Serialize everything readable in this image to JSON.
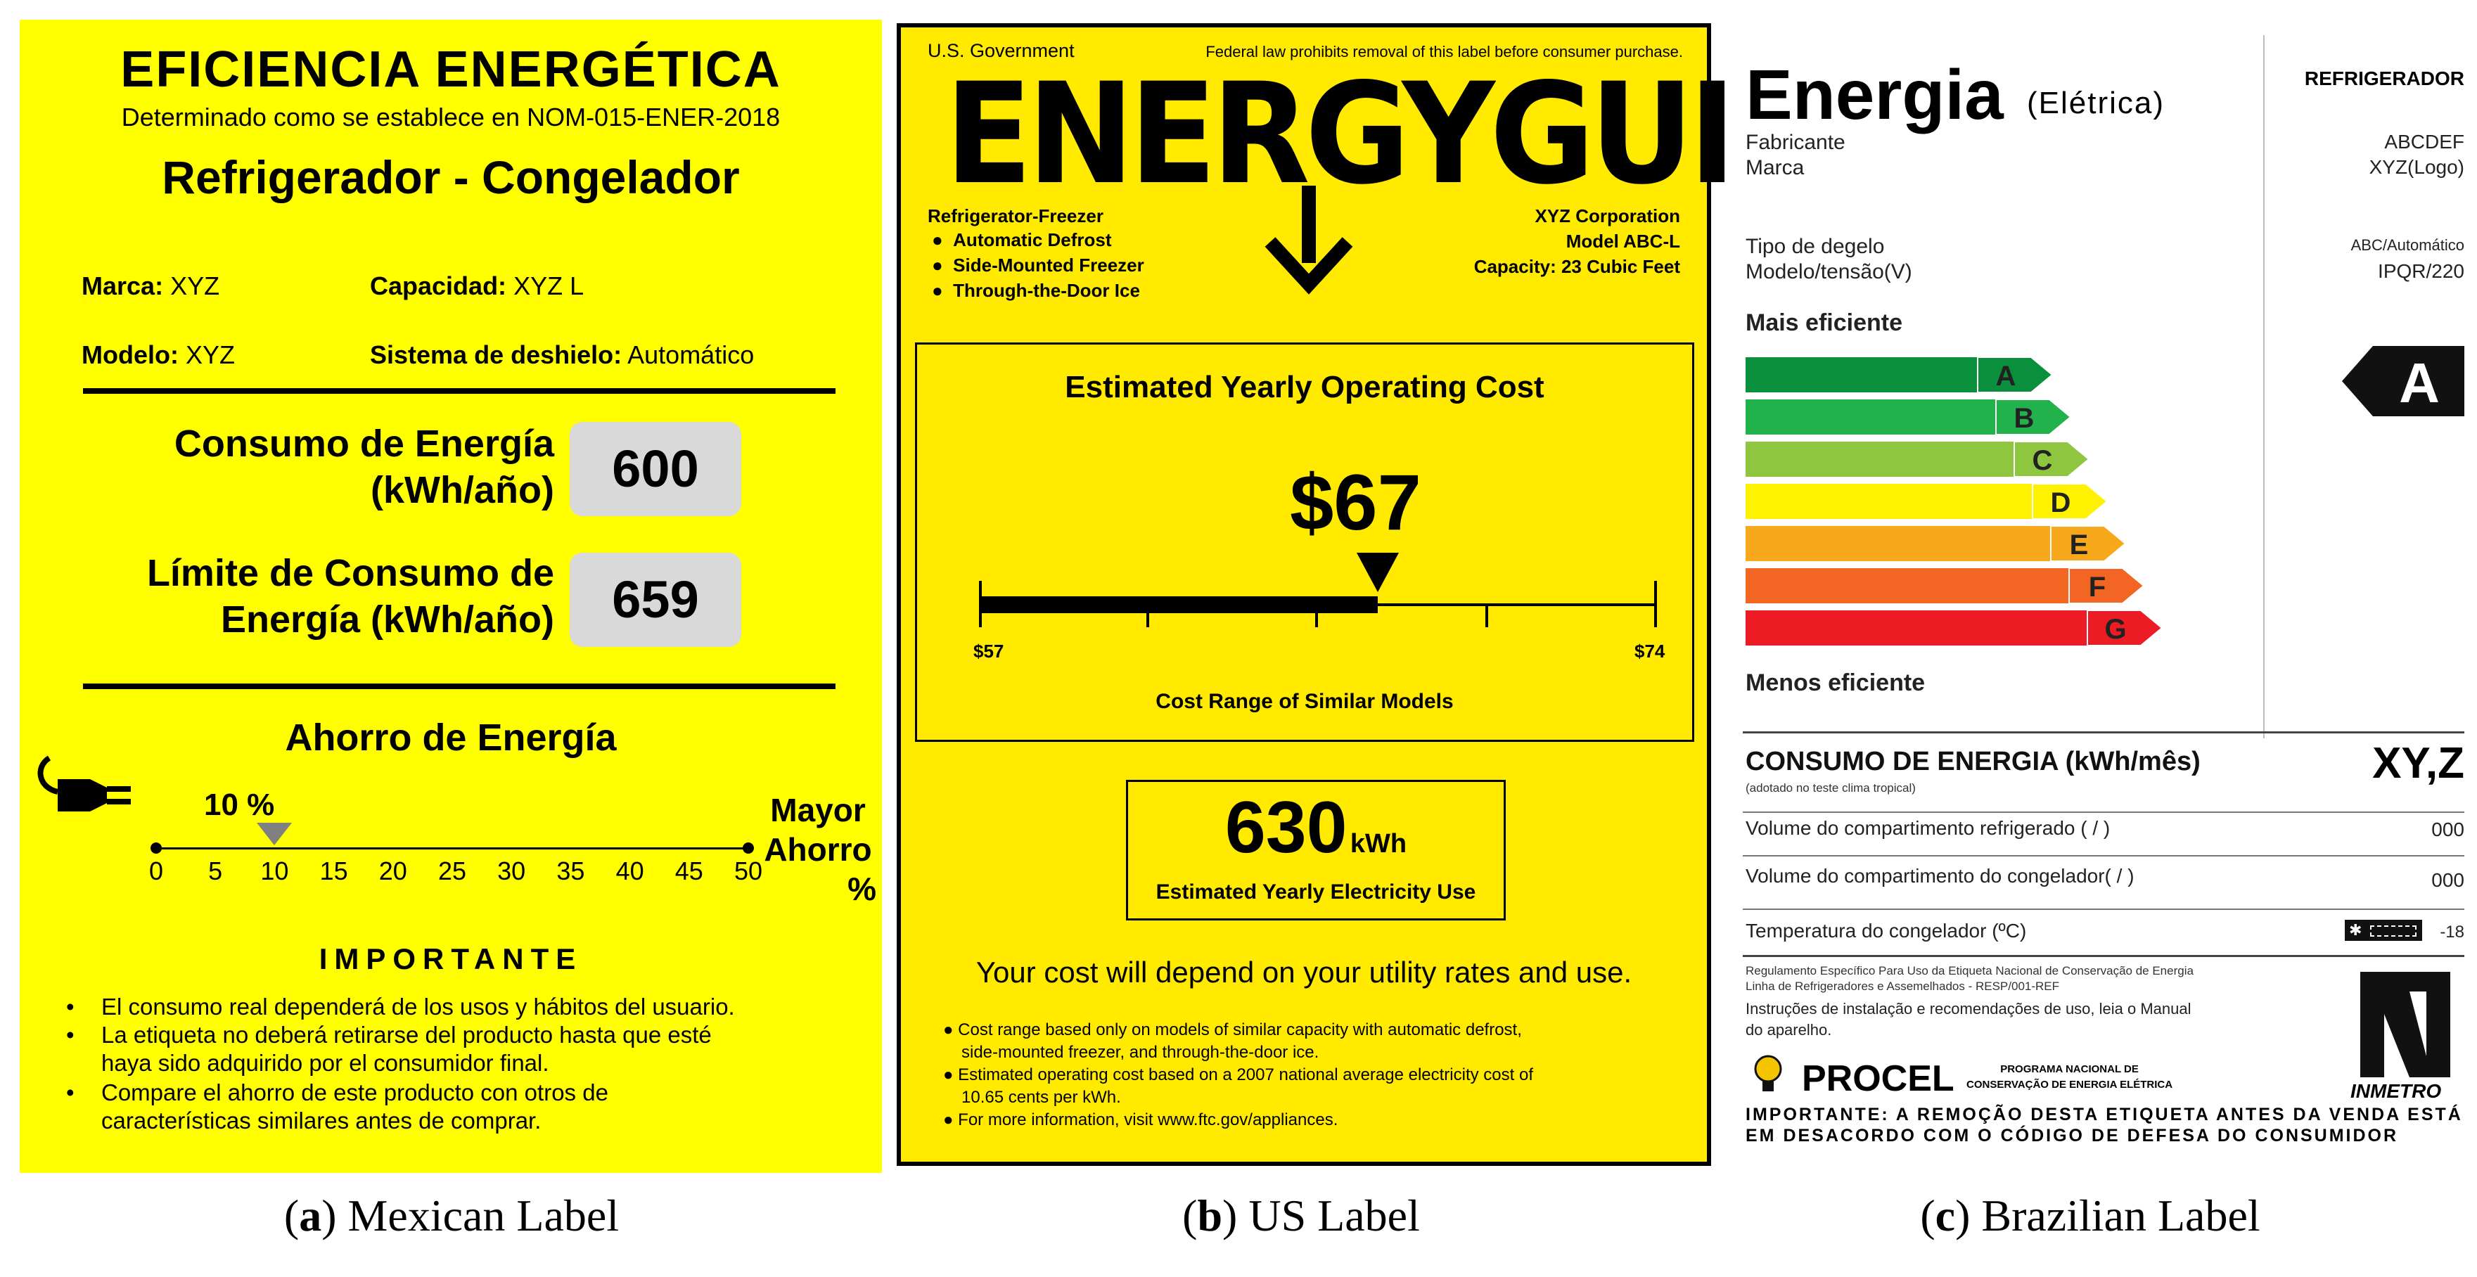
{
  "mexican": {
    "title": "EFICIENCIA ENERGÉTICA",
    "subtitle": "Determinado como se establece en NOM-015-ENER-2018",
    "product": "Refrigerador - Congelador",
    "marca_label": "Marca:",
    "marca_value": "XYZ",
    "capacidad_label": "Capacidad:",
    "capacidad_value": "XYZ L",
    "modelo_label": "Modelo:",
    "modelo_value": "XYZ",
    "deshielo_label": "Sistema de deshielo:",
    "deshielo_value": "Automático",
    "consumo_line1": "Consumo de Energía",
    "consumo_line2": "(kWh/año)",
    "consumo_value": "600",
    "limite_line1": "Límite de Consumo de",
    "limite_line2": "Energía (kWh/año)",
    "limite_value": "659",
    "ahorro_title": "Ahorro de Energía",
    "ahorro_value": "10 %",
    "ahorro_fraction": 0.2,
    "mayor1": "Mayor",
    "mayor2": "Ahorro",
    "mayor3": "%",
    "ticks": [
      "0",
      "5",
      "10",
      "15",
      "20",
      "25",
      "30",
      "35",
      "40",
      "45",
      "50"
    ],
    "importante": "IMPORTANTE",
    "bullets": [
      "El consumo real dependerá de los usos y hábitos del usuario.",
      "La etiqueta no deberá retirarse del producto hasta que esté",
      "haya sido adquirido por el consumidor final.",
      "Compare el ahorro de este producto con otros de",
      "características similares antes de comprar."
    ]
  },
  "us": {
    "gov": "U.S. Government",
    "law": "Federal law prohibits removal of this label before consumer purchase.",
    "title": "ENERGYGUIDE",
    "type": "Refrigerator-Freezer",
    "features": [
      "Automatic Defrost",
      "Side-Mounted Freezer",
      "Through-the-Door Ice"
    ],
    "maker": "XYZ Corporation",
    "model": "Model ABC-L",
    "capacity": "Capacity: 23 Cubic Feet",
    "cost_title": "Estimated Yearly Operating Cost",
    "cost": "$67",
    "range_min": "$57",
    "range_max": "$74",
    "cost_fraction": 0.588,
    "range_label": "Cost Range of Similar Models",
    "kwh": "630",
    "kwh_unit": "kWh",
    "kwh_label": "Estimated Yearly Electricity Use",
    "depend": "Your cost will depend on your utility rates and use.",
    "notes": [
      "Cost range based only on models of similar capacity with automatic defrost,",
      "side-mounted freezer, and through-the-door ice.",
      "Estimated operating cost based on a 2007 national average electricity cost of",
      "10.65 cents per kWh.",
      "For more information, visit www.ftc.gov/appliances."
    ]
  },
  "brazil": {
    "title": "Energia",
    "title_sub": "(Elétrica)",
    "category": "REFRIGERADOR",
    "fabricante": "Fabricante",
    "fabricante_value": "ABCDEF",
    "marca": "Marca",
    "marca_value": "XYZ(Logo)",
    "degelo": "Tipo de degelo",
    "degelo_value": "ABC/Automático",
    "modelo": "Modelo/tensão(V)",
    "modelo_value": "IPQR/220",
    "mais": "Mais eficiente",
    "menos": "Menos eficiente",
    "classes": [
      {
        "letter": "A",
        "color": "#0a8f3c"
      },
      {
        "letter": "B",
        "color": "#22b24c"
      },
      {
        "letter": "C",
        "color": "#8ec63f"
      },
      {
        "letter": "D",
        "color": "#fff200"
      },
      {
        "letter": "E",
        "color": "#f7a81b"
      },
      {
        "letter": "F",
        "color": "#f26522"
      },
      {
        "letter": "G",
        "color": "#ed1c24"
      }
    ],
    "rating": "A",
    "consumo": "CONSUMO DE ENERGIA (kWh/mês)",
    "consumo_note": "(adotado no teste clima tropical)",
    "consumo_value": "XY,Z",
    "vol_ref": "Volume do compartimento refrigerado",
    "vol_ref_unit": "( / )",
    "vol_ref_value": "000",
    "vol_cong": "Volume do compartimento do congelador",
    "vol_cong_unit": "( / )",
    "vol_cong_value": "000",
    "temp": "Temperatura do congelador (ºC)",
    "temp_value": "-18",
    "reg1": "Regulamento Específico Para Uso da Etiqueta Nacional de Conservação de Energia",
    "reg2": "Linha de Refrigeradores e Assemelhados - RESP/001-REF",
    "instr1": "Instruções de instalação e recomendações de uso, leia o Manual",
    "instr2": "do aparelho.",
    "procel": "PROCEL",
    "procel_sub1": "PROGRAMA NACIONAL DE",
    "procel_sub2": "CONSERVAÇÃO DE ENERGIA ELÉTRICA",
    "inmetro": "INMETRO",
    "final1": "IMPORTANTE: A REMOÇÃO DESTA ETIQUETA ANTES DA VENDA ESTÁ",
    "final2": "EM DESACORDO COM O CÓDIGO DE DEFESA DO CONSUMIDOR"
  },
  "captions": {
    "a_letter": "a",
    "a_text": " Mexican Label",
    "b_letter": "b",
    "b_text": " US Label",
    "c_letter": "c",
    "c_text": " Brazilian Label"
  }
}
